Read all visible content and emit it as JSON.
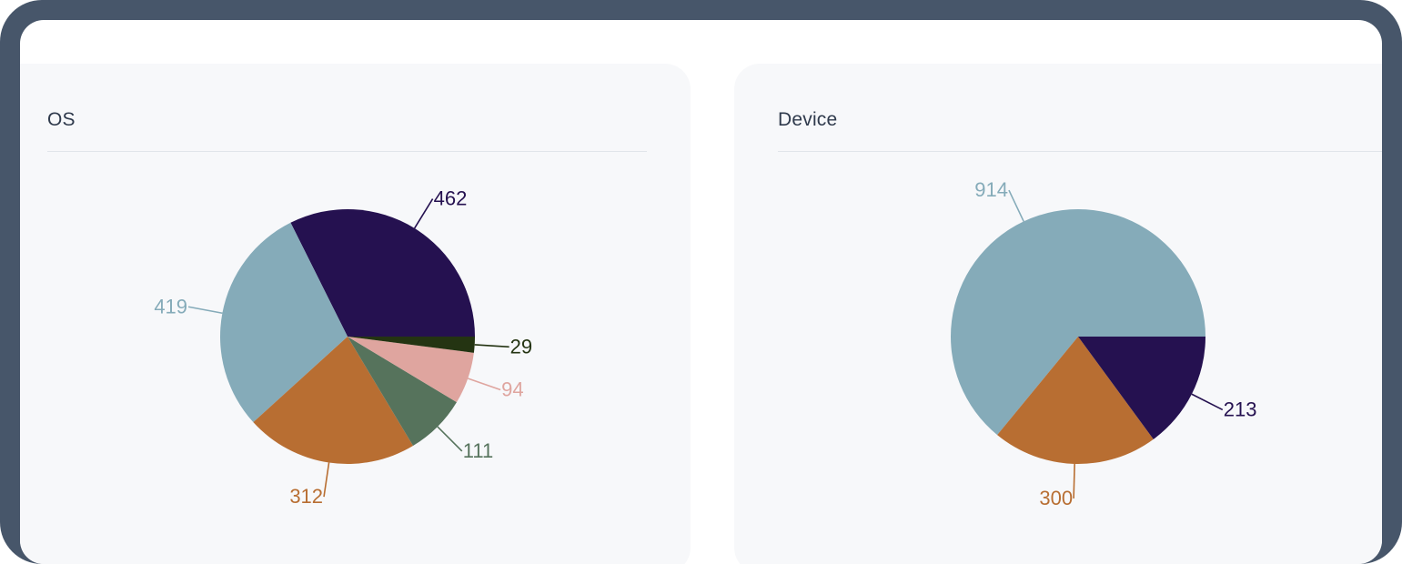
{
  "cards": {
    "os": {
      "title": "OS"
    },
    "device": {
      "title": "Device"
    }
  },
  "chart_data": [
    {
      "type": "pie",
      "title": "OS",
      "start_angle_deg": 0,
      "direction": "counterclockwise",
      "slices": [
        {
          "value": 462,
          "color": "#251150"
        },
        {
          "value": 419,
          "color": "#85abb9"
        },
        {
          "value": 312,
          "color": "#b86e32"
        },
        {
          "value": 111,
          "color": "#56735c"
        },
        {
          "value": 94,
          "color": "#dfa59f"
        },
        {
          "value": 29,
          "color": "#243412"
        }
      ]
    },
    {
      "type": "pie",
      "title": "Device",
      "start_angle_deg": 0,
      "direction": "counterclockwise",
      "slices": [
        {
          "value": 914,
          "color": "#85abb9"
        },
        {
          "value": 300,
          "color": "#b86e32"
        },
        {
          "value": 213,
          "color": "#251150"
        }
      ]
    }
  ]
}
